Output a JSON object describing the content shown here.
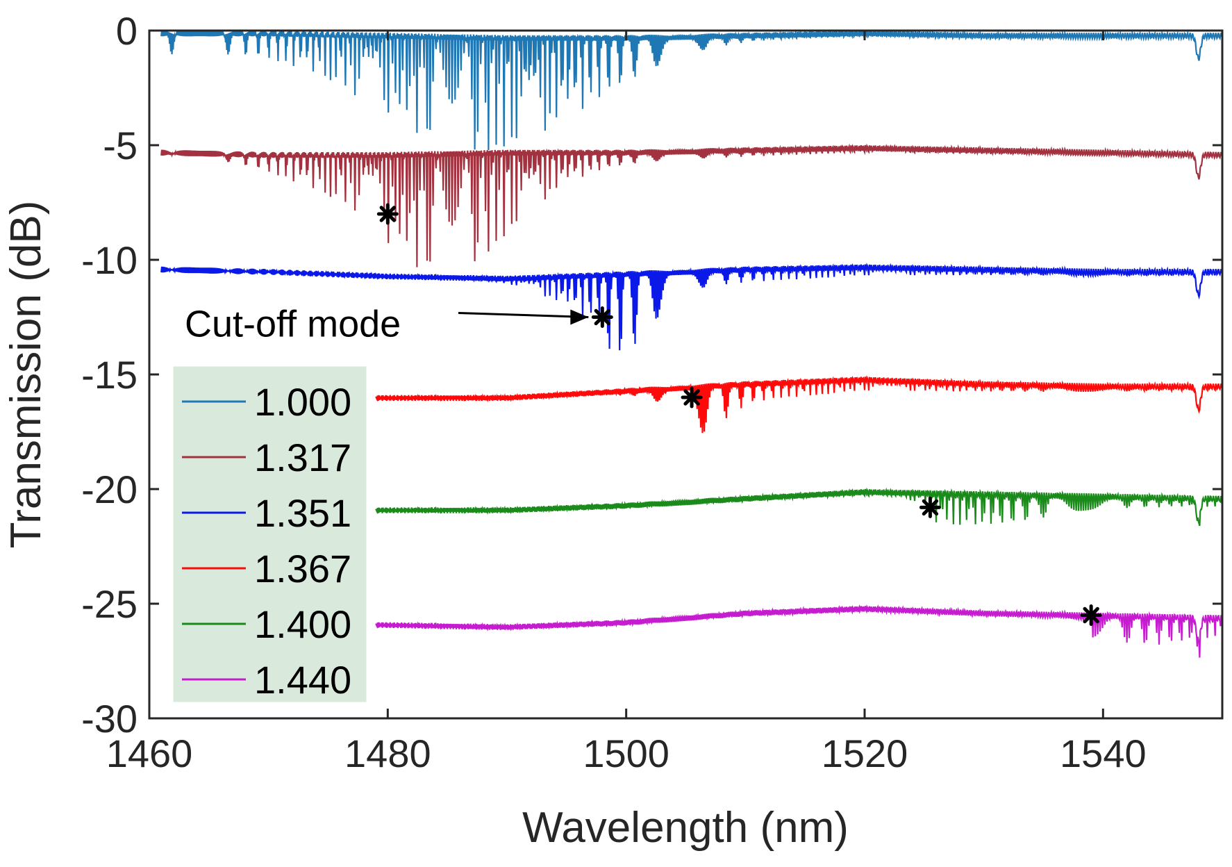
{
  "chart_data": {
    "type": "line",
    "title": "",
    "xlabel": "Wavelength (nm)",
    "ylabel": "Transmission (dB)",
    "xlim": [
      1460,
      1550
    ],
    "ylim": [
      -30,
      0
    ],
    "xticks": [
      1460,
      1480,
      1500,
      1520,
      1540
    ],
    "yticks": [
      0,
      -5,
      -10,
      -15,
      -20,
      -25,
      -30
    ],
    "grid": false,
    "legend_position": "left",
    "legend_background": "#d9eadc",
    "series": [
      {
        "name": "1.000",
        "color": "#1f77b4",
        "baseline": 0,
        "dip_center": 1488,
        "dip_width": 12,
        "dip_depth": 4.8,
        "cutoff": 1461,
        "end_dip": 1.0,
        "envelope": [
          [
            1461,
            0.0
          ],
          [
            1470,
            0.0
          ],
          [
            1480,
            -0.1
          ],
          [
            1490,
            -0.2
          ],
          [
            1500,
            -0.2
          ],
          [
            1510,
            -0.1
          ],
          [
            1520,
            0.0
          ],
          [
            1530,
            -0.1
          ],
          [
            1540,
            -0.1
          ],
          [
            1550,
            -0.1
          ]
        ]
      },
      {
        "name": "1.317",
        "color": "#a2323f",
        "baseline": -5,
        "dip_center": 1485,
        "dip_width": 8,
        "dip_depth": 4.6,
        "cutoff": 1480,
        "end_dip": 1.0,
        "envelope": [
          [
            1461,
            -5.2
          ],
          [
            1470,
            -5.3
          ],
          [
            1480,
            -5.3
          ],
          [
            1490,
            -5.2
          ],
          [
            1500,
            -5.2
          ],
          [
            1510,
            -5.1
          ],
          [
            1520,
            -5.0
          ],
          [
            1530,
            -5.1
          ],
          [
            1540,
            -5.2
          ],
          [
            1550,
            -5.3
          ]
        ]
      },
      {
        "name": "1.351",
        "color": "#0a18e8",
        "baseline": -10,
        "dip_center": 1499,
        "dip_width": 4,
        "dip_depth": 2.8,
        "cutoff": 1498,
        "end_dip": 1.0,
        "envelope": [
          [
            1461,
            -10.3
          ],
          [
            1470,
            -10.4
          ],
          [
            1480,
            -10.6
          ],
          [
            1490,
            -10.7
          ],
          [
            1500,
            -10.5
          ],
          [
            1510,
            -10.3
          ],
          [
            1520,
            -10.2
          ],
          [
            1530,
            -10.3
          ],
          [
            1540,
            -10.4
          ],
          [
            1550,
            -10.4
          ]
        ]
      },
      {
        "name": "1.367",
        "color": "#ff0a0a",
        "baseline": -15,
        "dip_center": 1506,
        "dip_width": 3,
        "dip_depth": 1.2,
        "cutoff": 1505.5,
        "end_dip": 1.0,
        "envelope": [
          [
            1479,
            -15.9
          ],
          [
            1490,
            -15.9
          ],
          [
            1500,
            -15.6
          ],
          [
            1510,
            -15.3
          ],
          [
            1520,
            -15.1
          ],
          [
            1530,
            -15.3
          ],
          [
            1540,
            -15.4
          ],
          [
            1550,
            -15.4
          ]
        ]
      },
      {
        "name": "1.400",
        "color": "#1a8a1a",
        "baseline": -20,
        "dip_center": 1530,
        "dip_width": 6,
        "dip_depth": 0.7,
        "cutoff": 1525.5,
        "end_dip": 1.0,
        "envelope": [
          [
            1479,
            -20.8
          ],
          [
            1490,
            -20.8
          ],
          [
            1500,
            -20.6
          ],
          [
            1510,
            -20.3
          ],
          [
            1520,
            -20.0
          ],
          [
            1530,
            -20.1
          ],
          [
            1540,
            -20.2
          ],
          [
            1550,
            -20.3
          ]
        ]
      },
      {
        "name": "1.440",
        "color": "#c61ccf",
        "baseline": -25,
        "dip_center": 1545,
        "dip_width": 5,
        "dip_depth": 0.5,
        "cutoff": 1539,
        "end_dip": 1.0,
        "envelope": [
          [
            1479,
            -25.8
          ],
          [
            1490,
            -25.9
          ],
          [
            1500,
            -25.7
          ],
          [
            1510,
            -25.3
          ],
          [
            1520,
            -25.1
          ],
          [
            1530,
            -25.3
          ],
          [
            1540,
            -25.4
          ],
          [
            1550,
            -25.5
          ]
        ]
      }
    ],
    "markers": [
      {
        "x": 1480,
        "y": -8.0,
        "symbol": "*"
      },
      {
        "x": 1498,
        "y": -12.5,
        "symbol": "*"
      },
      {
        "x": 1505.5,
        "y": -16.0,
        "symbol": "*"
      },
      {
        "x": 1525.5,
        "y": -20.8,
        "symbol": "*"
      },
      {
        "x": 1539,
        "y": -25.5,
        "symbol": "*"
      }
    ],
    "annotations": [
      {
        "text": "Cut-off mode",
        "points_to_x": 1498,
        "points_to_y": -12.5
      }
    ]
  }
}
